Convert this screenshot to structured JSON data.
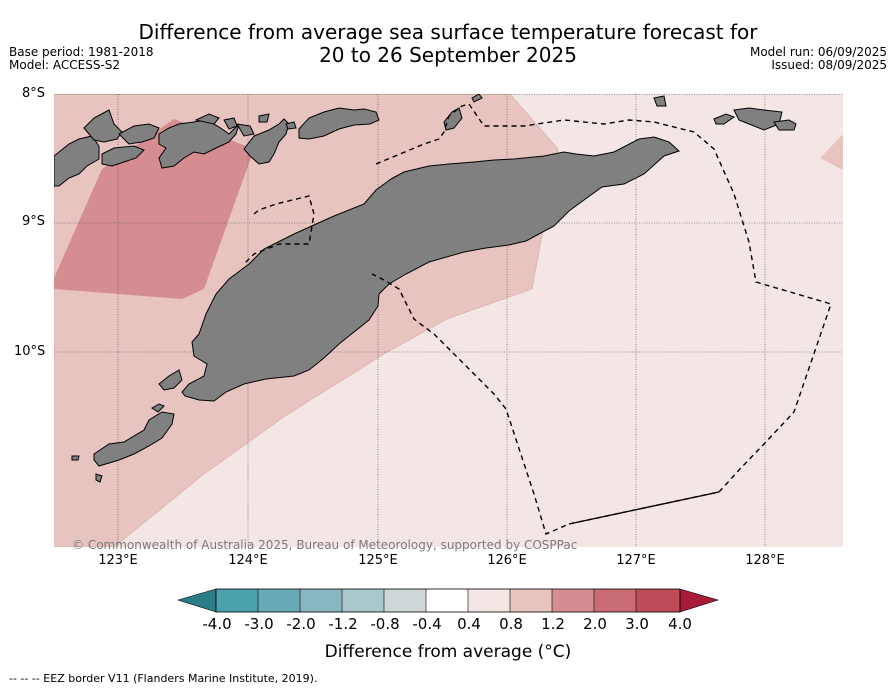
{
  "title": {
    "line1": "Difference from average sea surface temperature forecast for",
    "line2": "20 to 26 September 2025"
  },
  "meta_left": {
    "base_period": "Base period: 1981-2018",
    "model": "Model: ACCESS-S2"
  },
  "meta_right": {
    "model_run": "Model run: 06/09/2025",
    "issued": "Issued: 08/09/2025"
  },
  "map": {
    "region": "Timor and surrounding waters",
    "lat_labels": [
      "8°S",
      "9°S",
      "10°S"
    ],
    "lon_labels": [
      "123°E",
      "124°E",
      "125°E",
      "126°E",
      "127°E",
      "128°E"
    ],
    "land_color": "#808080",
    "fill_colors": {
      "band_0.4_0.8": "#f4e6e4",
      "band_0.8_1.2": "#e7c4c0",
      "band_1.2_2.0": "#d68d92"
    },
    "eez_line_style": "dashed",
    "copyright": "© Commonwealth of Australia 2025, Bureau of Meteorology, supported by COSPPac"
  },
  "colorbar": {
    "ticks": [
      "-4.0",
      "-3.0",
      "-2.0",
      "-1.2",
      "-0.8",
      "-0.4",
      "0.4",
      "0.8",
      "1.2",
      "2.0",
      "3.0",
      "4.0"
    ],
    "colors": [
      "#2c7c88",
      "#4ba1ad",
      "#6aaab6",
      "#88b6c1",
      "#a8c8cc",
      "#cfd6d8",
      "#ffffff",
      "#f4e6e4",
      "#e7c4c0",
      "#d68d92",
      "#c96b74",
      "#bf4a58",
      "#a81c3a"
    ],
    "label": "Difference from average (°C)"
  },
  "footnote": "--  --  -- EEZ border V11 (Flanders Marine Institute, 2019)."
}
